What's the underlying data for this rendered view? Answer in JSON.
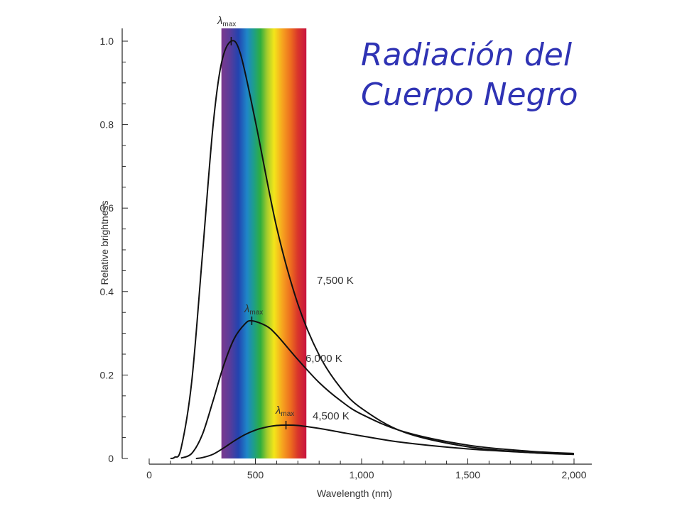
{
  "slide": {
    "title_line1": "Radiación del",
    "title_line2": "Cuerpo Negro"
  },
  "chart_data": {
    "type": "line",
    "xlabel": "Wavelength (nm)",
    "ylabel": "Relative brightness",
    "xlim": [
      0,
      2000
    ],
    "ylim": [
      0,
      1.0
    ],
    "x_ticks": [
      0,
      500,
      1000,
      1500,
      2000
    ],
    "x_tick_labels": [
      "0",
      "500",
      "1,000",
      "1,500",
      "2,000"
    ],
    "y_ticks": [
      0,
      0.2,
      0.4,
      0.6,
      0.8,
      1.0
    ],
    "y_tick_labels": [
      "0",
      "0.2",
      "0.4",
      "0.6",
      "0.8",
      "1.0"
    ],
    "grid": false,
    "visible_band": {
      "start_nm": 340,
      "end_nm": 740
    },
    "lambda_max_symbol": "λ",
    "lambda_max_subscript": "max",
    "series": [
      {
        "name": "7,500 K",
        "color": "#111111",
        "x": [
          100,
          120,
          150,
          200,
          250,
          300,
          340,
          386,
          430,
          500,
          600,
          700,
          800,
          900,
          1000,
          1200,
          1500,
          1800,
          2000
        ],
        "y": [
          0.0,
          0.003,
          0.024,
          0.183,
          0.484,
          0.794,
          0.947,
          1.0,
          0.969,
          0.808,
          0.554,
          0.37,
          0.248,
          0.17,
          0.12,
          0.063,
          0.028,
          0.014,
          0.01
        ],
        "peak_nm": 386
      },
      {
        "name": "6,000 K",
        "color": "#111111",
        "x": [
          150,
          200,
          250,
          300,
          350,
          400,
          450,
          483,
          550,
          600,
          700,
          800,
          900,
          1000,
          1200,
          1500,
          1800,
          2000
        ],
        "y": [
          0.001,
          0.012,
          0.057,
          0.137,
          0.222,
          0.287,
          0.322,
          0.33,
          0.318,
          0.296,
          0.237,
          0.182,
          0.139,
          0.106,
          0.064,
          0.032,
          0.017,
          0.012
        ],
        "peak_nm": 483
      },
      {
        "name": "4,500 K",
        "color": "#111111",
        "x": [
          220,
          250,
          300,
          350,
          400,
          450,
          500,
          550,
          600,
          644,
          700,
          800,
          900,
          1000,
          1200,
          1500,
          1800,
          2000
        ],
        "y": [
          0.0,
          0.002,
          0.01,
          0.025,
          0.042,
          0.057,
          0.068,
          0.075,
          0.079,
          0.08,
          0.079,
          0.072,
          0.063,
          0.054,
          0.038,
          0.023,
          0.014,
          0.01
        ],
        "peak_nm": 644
      }
    ]
  }
}
